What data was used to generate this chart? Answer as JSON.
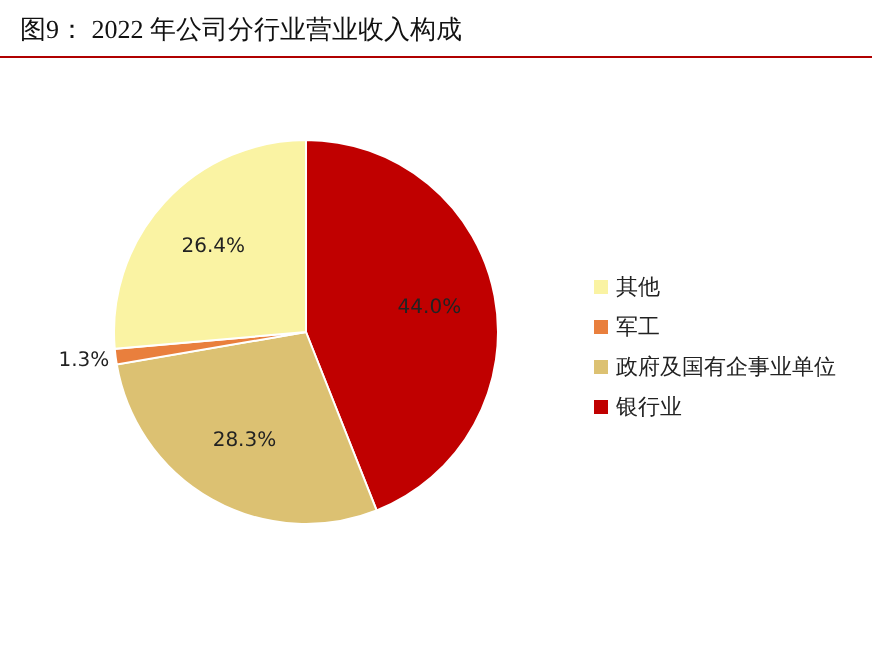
{
  "chart_data": {
    "type": "pie",
    "title": "图9：  2022 年公司分行业营业收入构成",
    "categories": [
      "银行业",
      "政府及国有企事业单位",
      "军工",
      "其他"
    ],
    "values": [
      44.0,
      28.3,
      1.3,
      26.4
    ],
    "colors": [
      "#c00000",
      "#dcc172",
      "#e97f3d",
      "#faf3a3"
    ],
    "value_labels": [
      "44.0%",
      "28.3%",
      "1.3%",
      "26.4%"
    ],
    "legend": "right"
  }
}
